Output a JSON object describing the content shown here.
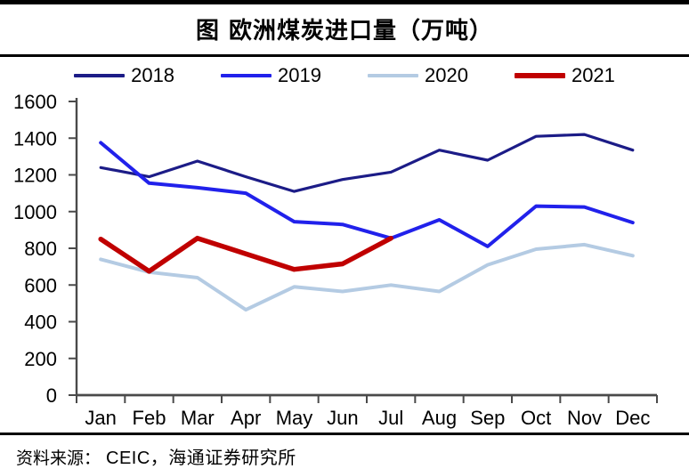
{
  "title": "图  欧洲煤炭进口量（万吨）",
  "footer": {
    "label": "资料来源：",
    "source": "CEIC，海通证券研究所"
  },
  "colors": {
    "axis": "#4a4a4a",
    "text": "#000000",
    "series_2018": "#1c1c87",
    "series_2019": "#2121eb",
    "series_2020": "#b4cbe3",
    "series_2021": "#c00000"
  },
  "chart_data": {
    "type": "line",
    "title": "图 欧洲煤炭进口量（万吨）",
    "xlabel": "",
    "ylabel": "",
    "categories": [
      "Jan",
      "Feb",
      "Mar",
      "Apr",
      "May",
      "Jun",
      "Jul",
      "Aug",
      "Sep",
      "Oct",
      "Nov",
      "Dec"
    ],
    "ylim": [
      0,
      1600
    ],
    "ytick_step": 200,
    "grid": false,
    "legend_position": "top",
    "series": [
      {
        "name": "2018",
        "color": "#1c1c87",
        "stroke_width": 3.2,
        "values": [
          1240,
          1190,
          1275,
          1190,
          1110,
          1175,
          1215,
          1335,
          1280,
          1410,
          1420,
          1335
        ]
      },
      {
        "name": "2019",
        "color": "#2121eb",
        "stroke_width": 4,
        "values": [
          1375,
          1155,
          1130,
          1100,
          945,
          930,
          855,
          955,
          810,
          1030,
          1025,
          940
        ]
      },
      {
        "name": "2020",
        "color": "#b4cbe3",
        "stroke_width": 4,
        "values": [
          740,
          670,
          640,
          465,
          590,
          565,
          600,
          565,
          710,
          795,
          820,
          760
        ]
      },
      {
        "name": "2021",
        "color": "#c00000",
        "stroke_width": 5.5,
        "values": [
          850,
          675,
          855,
          770,
          685,
          715,
          855
        ]
      }
    ]
  }
}
